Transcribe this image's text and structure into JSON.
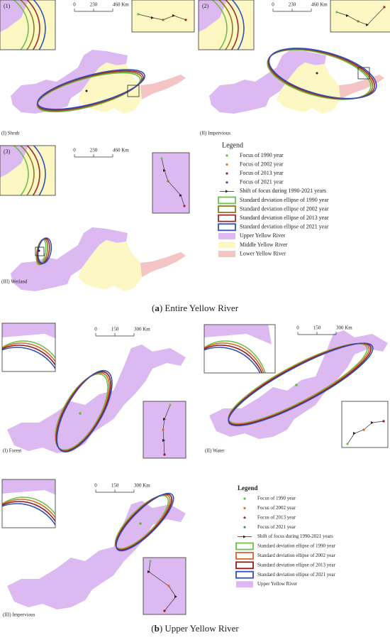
{
  "part_a": {
    "panels": [
      {
        "inset_label": "(1)",
        "label": "(I) Shrub"
      },
      {
        "inset_label": "(2)",
        "label": "(II) Impervious"
      },
      {
        "inset_label": "(3)",
        "label": "(III) Wetland"
      }
    ],
    "scale_bar": [
      "0",
      "230",
      "460 Km"
    ],
    "legend": {
      "title": "Legend",
      "items": [
        {
          "label": "Focus of 1990 year",
          "symbol": "point",
          "color": "#5cbf3a"
        },
        {
          "label": "Focus of 2002 year",
          "symbol": "point",
          "color": "#d9782a"
        },
        {
          "label": "Focus of 2013 year",
          "symbol": "point",
          "color": "#a3262a"
        },
        {
          "label": "Focus of 2021 year",
          "symbol": "point",
          "color": "#2f4fbf"
        },
        {
          "label": "Shift of focus during 1990-2021 years",
          "symbol": "arrow",
          "color": "#222222"
        },
        {
          "label": "Standard deviation ellipse of 1990 year",
          "symbol": "ring",
          "color": "#6cc04a"
        },
        {
          "label": "Standard deviation ellipse of 2002 year",
          "symbol": "ring",
          "color": "#8c7a1c"
        },
        {
          "label": "Standard deviation ellipse of 2013 year",
          "symbol": "ring",
          "color": "#a3262a"
        },
        {
          "label": "Standard deviation ellipse of 2021 year",
          "symbol": "ring",
          "color": "#2f4fbf"
        },
        {
          "label": "Upper Yellow River",
          "symbol": "fill",
          "color": "#dcb9f0"
        },
        {
          "label": "Middle Yellow River",
          "symbol": "fill",
          "color": "#fdf7c4"
        },
        {
          "label": "Lower Yellow River",
          "symbol": "fill",
          "color": "#f5c4c4"
        }
      ]
    },
    "caption": {
      "open": "(",
      "letter": "a",
      "rest": ") Entire Yellow River"
    }
  },
  "part_b": {
    "panels": [
      {
        "label": "(I) Forest"
      },
      {
        "label": "(II) Water"
      },
      {
        "label": "(III) Impervious"
      }
    ],
    "scale_bar": [
      "0",
      "150",
      "300 Km"
    ],
    "legend": {
      "title": "Legend",
      "items": [
        {
          "label": "Focus of 1990 year",
          "symbol": "point",
          "color": "#5cbf3a"
        },
        {
          "label": "Focus of 2002 year",
          "symbol": "point",
          "color": "#d9782a"
        },
        {
          "label": "Focus of 2013 year",
          "symbol": "point",
          "color": "#a3262a"
        },
        {
          "label": "Focus of 2021 year",
          "symbol": "point",
          "color": "#2f8f9f"
        },
        {
          "label": "Shift of focus during 1990-2021 years",
          "symbol": "arrow",
          "color": "#222222"
        },
        {
          "label": "Standard deviation ellipse of 1990 year",
          "symbol": "ring",
          "color": "#6cc04a"
        },
        {
          "label": "Standard deviation ellipse of 2002 year",
          "symbol": "ring",
          "color": "#d9652a"
        },
        {
          "label": "Standard deviation ellipse of 2013 year",
          "symbol": "ring",
          "color": "#8c1c1c"
        },
        {
          "label": "Standard deviation ellipse of 2021 year",
          "symbol": "ring",
          "color": "#2f4fbf"
        },
        {
          "label": "Upper Yellow River",
          "symbol": "fill",
          "color": "#dcb9f0"
        }
      ]
    },
    "caption": {
      "open": "(",
      "letter": "b",
      "rest": ") Upper Yellow River"
    }
  }
}
